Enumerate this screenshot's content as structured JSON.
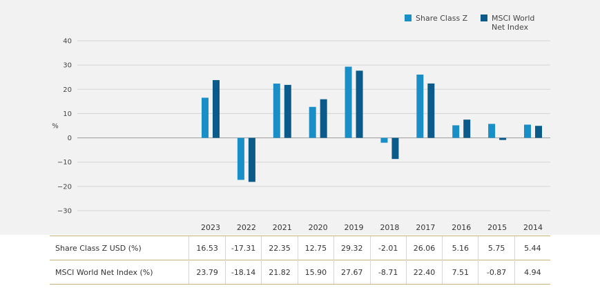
{
  "chart_data": {
    "type": "bar",
    "categories": [
      "2023",
      "2022",
      "2021",
      "2020",
      "2019",
      "2018",
      "2017",
      "2016",
      "2015",
      "2014"
    ],
    "series": [
      {
        "name": "Share Class Z",
        "color": "#1a8ec6",
        "values": [
          16.53,
          -17.31,
          22.35,
          12.75,
          29.32,
          -2.01,
          26.06,
          5.16,
          5.75,
          5.44
        ]
      },
      {
        "name": "MSCI World Net Index",
        "color": "#0a5a8a",
        "values": [
          23.79,
          -18.14,
          21.82,
          15.9,
          27.67,
          -8.71,
          22.4,
          7.51,
          -0.87,
          4.94
        ]
      }
    ],
    "ylabel": "%",
    "ylim": [
      -30,
      40
    ],
    "yticks": [
      40,
      30,
      20,
      10,
      0,
      -10,
      -20,
      -30
    ],
    "grid": true,
    "legend": "top-right"
  },
  "legend": {
    "z_label": "Share Class Z",
    "msci_label": "MSCI World Net Index"
  },
  "table": {
    "rows": [
      {
        "label": "Share Class Z USD (%)",
        "values": [
          "16.53",
          "-17.31",
          "22.35",
          "12.75",
          "29.32",
          "-2.01",
          "26.06",
          "5.16",
          "5.75",
          "5.44"
        ]
      },
      {
        "label": "MSCI World Net Index (%)",
        "values": [
          "23.79",
          "-18.14",
          "21.82",
          "15.90",
          "27.67",
          "-8.71",
          "22.40",
          "7.51",
          "-0.87",
          "4.94"
        ]
      }
    ]
  }
}
